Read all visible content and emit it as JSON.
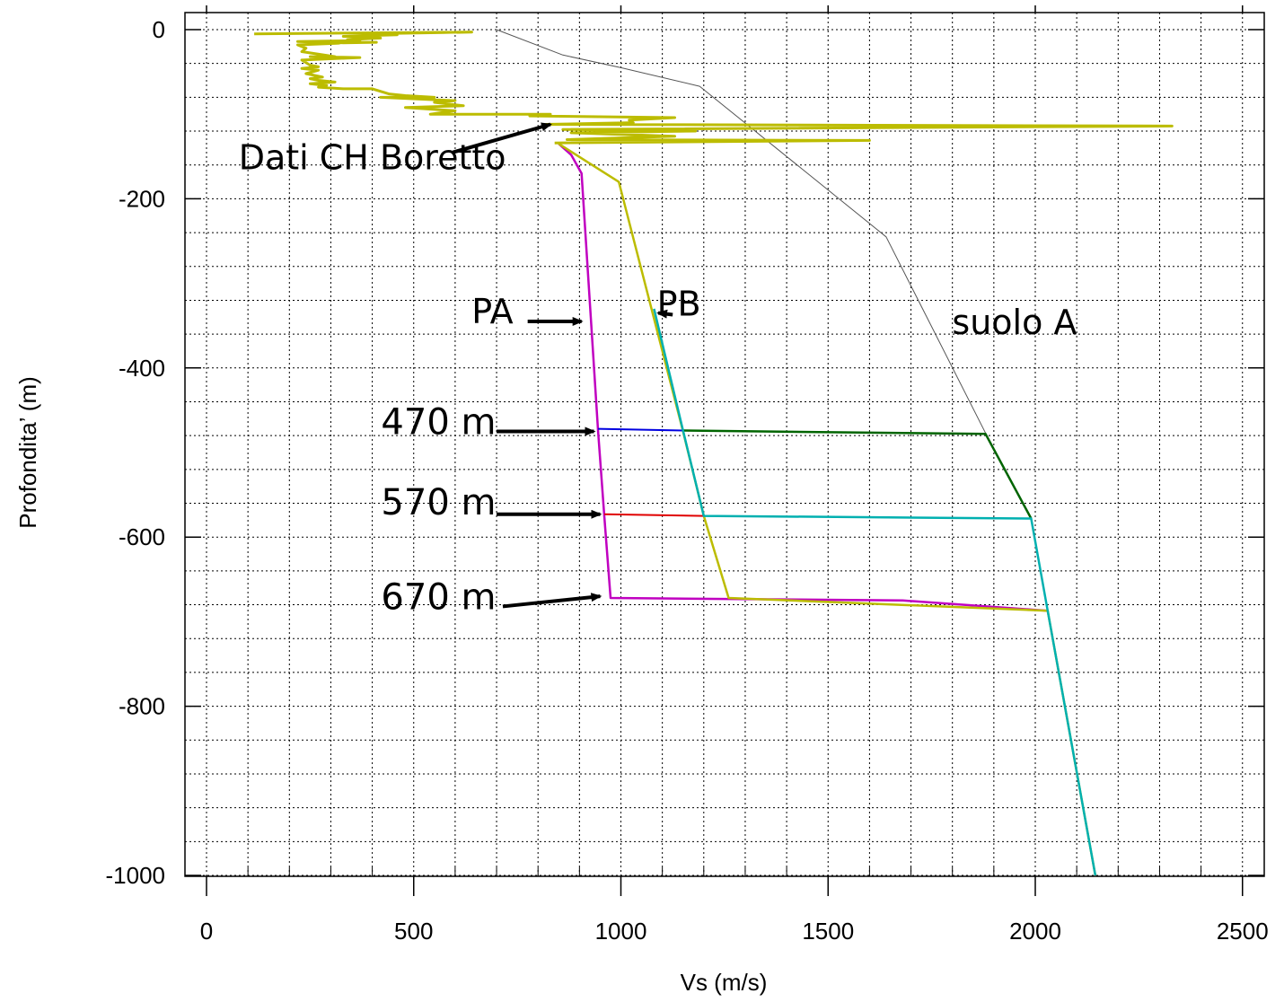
{
  "chart_data": {
    "type": "line",
    "xlabel": "Vs (m/s)",
    "ylabel": "Profondita’ (m)",
    "xlim": [
      0,
      2550
    ],
    "ylim": [
      -1000,
      0
    ],
    "x_ticks": [
      0,
      500,
      1000,
      1500,
      2000,
      2500
    ],
    "y_ticks": [
      0,
      -200,
      -400,
      -600,
      -800,
      -1000
    ],
    "x_tick_labels": [
      "0",
      "500",
      "1000",
      "1500",
      "2000",
      "2500"
    ],
    "y_tick_labels": [
      "0",
      "-200",
      "-400",
      "-600",
      "-800",
      "-1000"
    ],
    "grid": true,
    "grid_style": "dotted",
    "minor_grid_x_step": 100,
    "minor_grid_y_step": 40,
    "colors": {
      "borehole": "#bcbc00",
      "pa": "#c000c0",
      "pb": "#bcbc00",
      "suolo_a": "#555555",
      "blue": "#0000e0",
      "red": "#e00000",
      "cyan": "#00b0b0",
      "green": "#006400"
    },
    "series": [
      {
        "key": "suolo_a",
        "color": "#555555",
        "width": 1,
        "points": [
          [
            700,
            0
          ],
          [
            860,
            -30
          ],
          [
            1000,
            -45
          ],
          [
            1190,
            -67
          ],
          [
            1640,
            -245
          ],
          [
            1880,
            -477
          ],
          [
            1990,
            -577
          ],
          [
            2030,
            -687
          ],
          [
            2145,
            -1000
          ]
        ]
      },
      {
        "key": "pa_slow",
        "color": "#c000c0",
        "width": 2.5,
        "points": [
          [
            850,
            -135
          ],
          [
            880,
            -148
          ],
          [
            905,
            -170
          ],
          [
            945,
            -475
          ],
          [
            960,
            -575
          ],
          [
            975,
            -672
          ],
          [
            1680,
            -675
          ],
          [
            2030,
            -687
          ]
        ]
      },
      {
        "key": "pb",
        "color": "#bcbc00",
        "width": 2.5,
        "points": [
          [
            850,
            -135
          ],
          [
            995,
            -180
          ],
          [
            1150,
            -475
          ],
          [
            1200,
            -575
          ],
          [
            1260,
            -672
          ],
          [
            2030,
            -687
          ],
          [
            2145,
            -1000
          ]
        ]
      },
      {
        "key": "c470",
        "color": "#0000e0",
        "width": 2,
        "points": [
          [
            945,
            -472
          ],
          [
            1150,
            -474
          ]
        ]
      },
      {
        "key": "c570",
        "color": "#e00000",
        "width": 2,
        "points": [
          [
            960,
            -573
          ],
          [
            1200,
            -575
          ]
        ]
      },
      {
        "key": "green_470",
        "color": "#006400",
        "width": 2.5,
        "points": [
          [
            1150,
            -474
          ],
          [
            1880,
            -478
          ],
          [
            1990,
            -578
          ]
        ]
      },
      {
        "key": "cyan_570",
        "color": "#00b0b0",
        "width": 2.5,
        "points": [
          [
            1080,
            -330
          ],
          [
            1150,
            -474
          ],
          [
            1200,
            -575
          ],
          [
            1990,
            -578
          ],
          [
            2030,
            -687
          ],
          [
            2145,
            -1000
          ]
        ]
      },
      {
        "key": "borehole",
        "color": "#bcbc00",
        "width": 3,
        "points": [
          [
            115,
            -5
          ],
          [
            640,
            -3
          ],
          [
            380,
            -5
          ],
          [
            460,
            -6
          ],
          [
            330,
            -8
          ],
          [
            420,
            -10
          ],
          [
            340,
            -12
          ],
          [
            370,
            -13
          ],
          [
            220,
            -14
          ],
          [
            280,
            -15
          ],
          [
            410,
            -15
          ],
          [
            270,
            -16
          ],
          [
            320,
            -16
          ],
          [
            220,
            -18
          ],
          [
            240,
            -22
          ],
          [
            230,
            -26
          ],
          [
            310,
            -32
          ],
          [
            250,
            -32
          ],
          [
            370,
            -33
          ],
          [
            230,
            -36
          ],
          [
            250,
            -42
          ],
          [
            270,
            -44
          ],
          [
            230,
            -46
          ],
          [
            270,
            -48
          ],
          [
            240,
            -52
          ],
          [
            280,
            -56
          ],
          [
            250,
            -58
          ],
          [
            270,
            -60
          ],
          [
            310,
            -62
          ],
          [
            250,
            -64
          ],
          [
            290,
            -66
          ],
          [
            270,
            -68
          ],
          [
            330,
            -70
          ],
          [
            400,
            -70
          ],
          [
            440,
            -76
          ],
          [
            480,
            -78
          ],
          [
            550,
            -80
          ],
          [
            420,
            -80
          ],
          [
            600,
            -84
          ],
          [
            550,
            -86
          ],
          [
            620,
            -90
          ],
          [
            480,
            -92
          ],
          [
            600,
            -96
          ],
          [
            540,
            -100
          ],
          [
            830,
            -100
          ],
          [
            780,
            -102
          ],
          [
            1130,
            -104
          ],
          [
            1020,
            -107
          ],
          [
            1030,
            -110
          ],
          [
            820,
            -112
          ],
          [
            2330,
            -114
          ],
          [
            860,
            -118
          ],
          [
            1180,
            -120
          ],
          [
            880,
            -122
          ],
          [
            1130,
            -126
          ],
          [
            870,
            -130
          ],
          [
            1600,
            -131
          ],
          [
            840,
            -134
          ]
        ]
      }
    ],
    "annotations": [
      {
        "text": "Dati CH Boretto",
        "x": 400,
        "y": -165,
        "size": 38
      },
      {
        "text": "PA",
        "x": 690,
        "y": -347,
        "size": 38
      },
      {
        "text": "PB",
        "x": 1140,
        "y": -338,
        "size": 38
      },
      {
        "text": "suolo A",
        "x": 1950,
        "y": -360,
        "size": 38
      },
      {
        "text": "470 m",
        "x": 560,
        "y": -478,
        "size": 40
      },
      {
        "text": "570 m",
        "x": 560,
        "y": -573,
        "size": 40
      },
      {
        "text": "670 m",
        "x": 560,
        "y": -685,
        "size": 40
      }
    ],
    "arrows": [
      {
        "from": [
          595,
          -145
        ],
        "to": [
          830,
          -112
        ]
      },
      {
        "from": [
          775,
          -345
        ],
        "to": [
          905,
          -345
        ]
      },
      {
        "from": [
          1125,
          -337
        ],
        "to": [
          1090,
          -335
        ]
      },
      {
        "from": [
          700,
          -475
        ],
        "to": [
          935,
          -475
        ]
      },
      {
        "from": [
          700,
          -573
        ],
        "to": [
          950,
          -573
        ]
      },
      {
        "from": [
          715,
          -682
        ],
        "to": [
          950,
          -670
        ]
      }
    ]
  }
}
